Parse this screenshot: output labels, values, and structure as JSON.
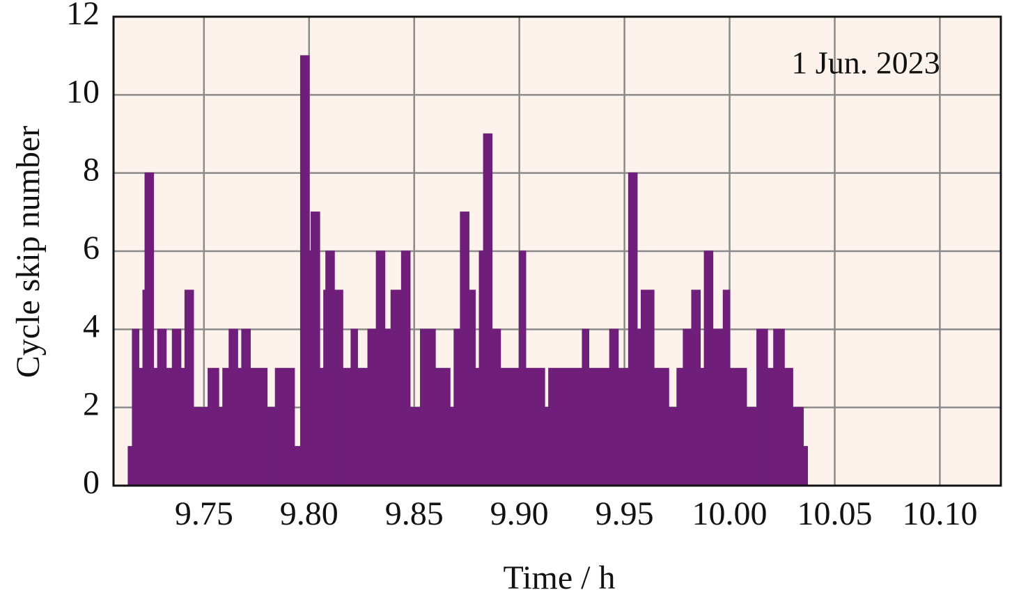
{
  "chart_data": {
    "type": "step-area",
    "annotation": "1 Jun. 2023",
    "x_label": "Time / h",
    "y_label": "Cycle skip number",
    "color": "#6f1f7a",
    "background": "#fdf3ec",
    "grid": true,
    "xlim": [
      9.707,
      10.129
    ],
    "ylim": [
      0,
      12
    ],
    "xticks": [
      9.75,
      {
        "value": 9.8,
        "label": "9.80"
      },
      9.85,
      {
        "value": 9.9,
        "label": "9.90"
      },
      9.95,
      {
        "value": 10,
        "label": "10.00"
      },
      10.05,
      {
        "value": 10.1,
        "label": "10.10"
      }
    ],
    "yticks": [
      0,
      2,
      4,
      6,
      8,
      10,
      12
    ],
    "x": [
      9.707,
      9.714,
      9.716,
      9.719,
      9.721,
      9.722,
      9.726,
      9.728,
      9.732,
      9.735,
      9.739,
      9.741,
      9.745,
      9.752,
      9.757,
      9.759,
      9.762,
      9.766,
      9.768,
      9.772,
      9.78,
      9.784,
      9.793,
      9.796,
      9.8,
      9.801,
      9.805,
      9.807,
      9.808,
      9.812,
      9.816,
      9.82,
      9.823,
      9.828,
      9.832,
      9.836,
      9.839,
      9.844,
      9.848,
      9.853,
      9.86,
      9.867,
      9.869,
      9.872,
      9.876,
      9.879,
      9.881,
      9.883,
      9.887,
      9.891,
      9.9,
      9.903,
      9.912,
      9.914,
      9.93,
      9.933,
      9.943,
      9.947,
      9.952,
      9.956,
      9.958,
      9.964,
      9.971,
      9.975,
      9.978,
      9.982,
      9.986,
      9.988,
      9.992,
      9.997,
      10.0,
      10.008,
      10.013,
      10.018,
      10.021,
      10.026,
      10.03,
      10.035,
      10.037
    ],
    "values": [
      0,
      1,
      4,
      3,
      5,
      8,
      3,
      4,
      3,
      4,
      3,
      5,
      2,
      3,
      2,
      3,
      4,
      3,
      4,
      3,
      2,
      3,
      1,
      11,
      6,
      7,
      3,
      5,
      6,
      5,
      3,
      4,
      3,
      4,
      6,
      4,
      5,
      6,
      2,
      4,
      3,
      2,
      4,
      7,
      5,
      3,
      6,
      9,
      4,
      3,
      6,
      3,
      2,
      3,
      4,
      3,
      4,
      3,
      8,
      4,
      5,
      3,
      2,
      3,
      4,
      5,
      3,
      6,
      4,
      5,
      3,
      2,
      4,
      3,
      4,
      3,
      2,
      1,
      0
    ]
  }
}
